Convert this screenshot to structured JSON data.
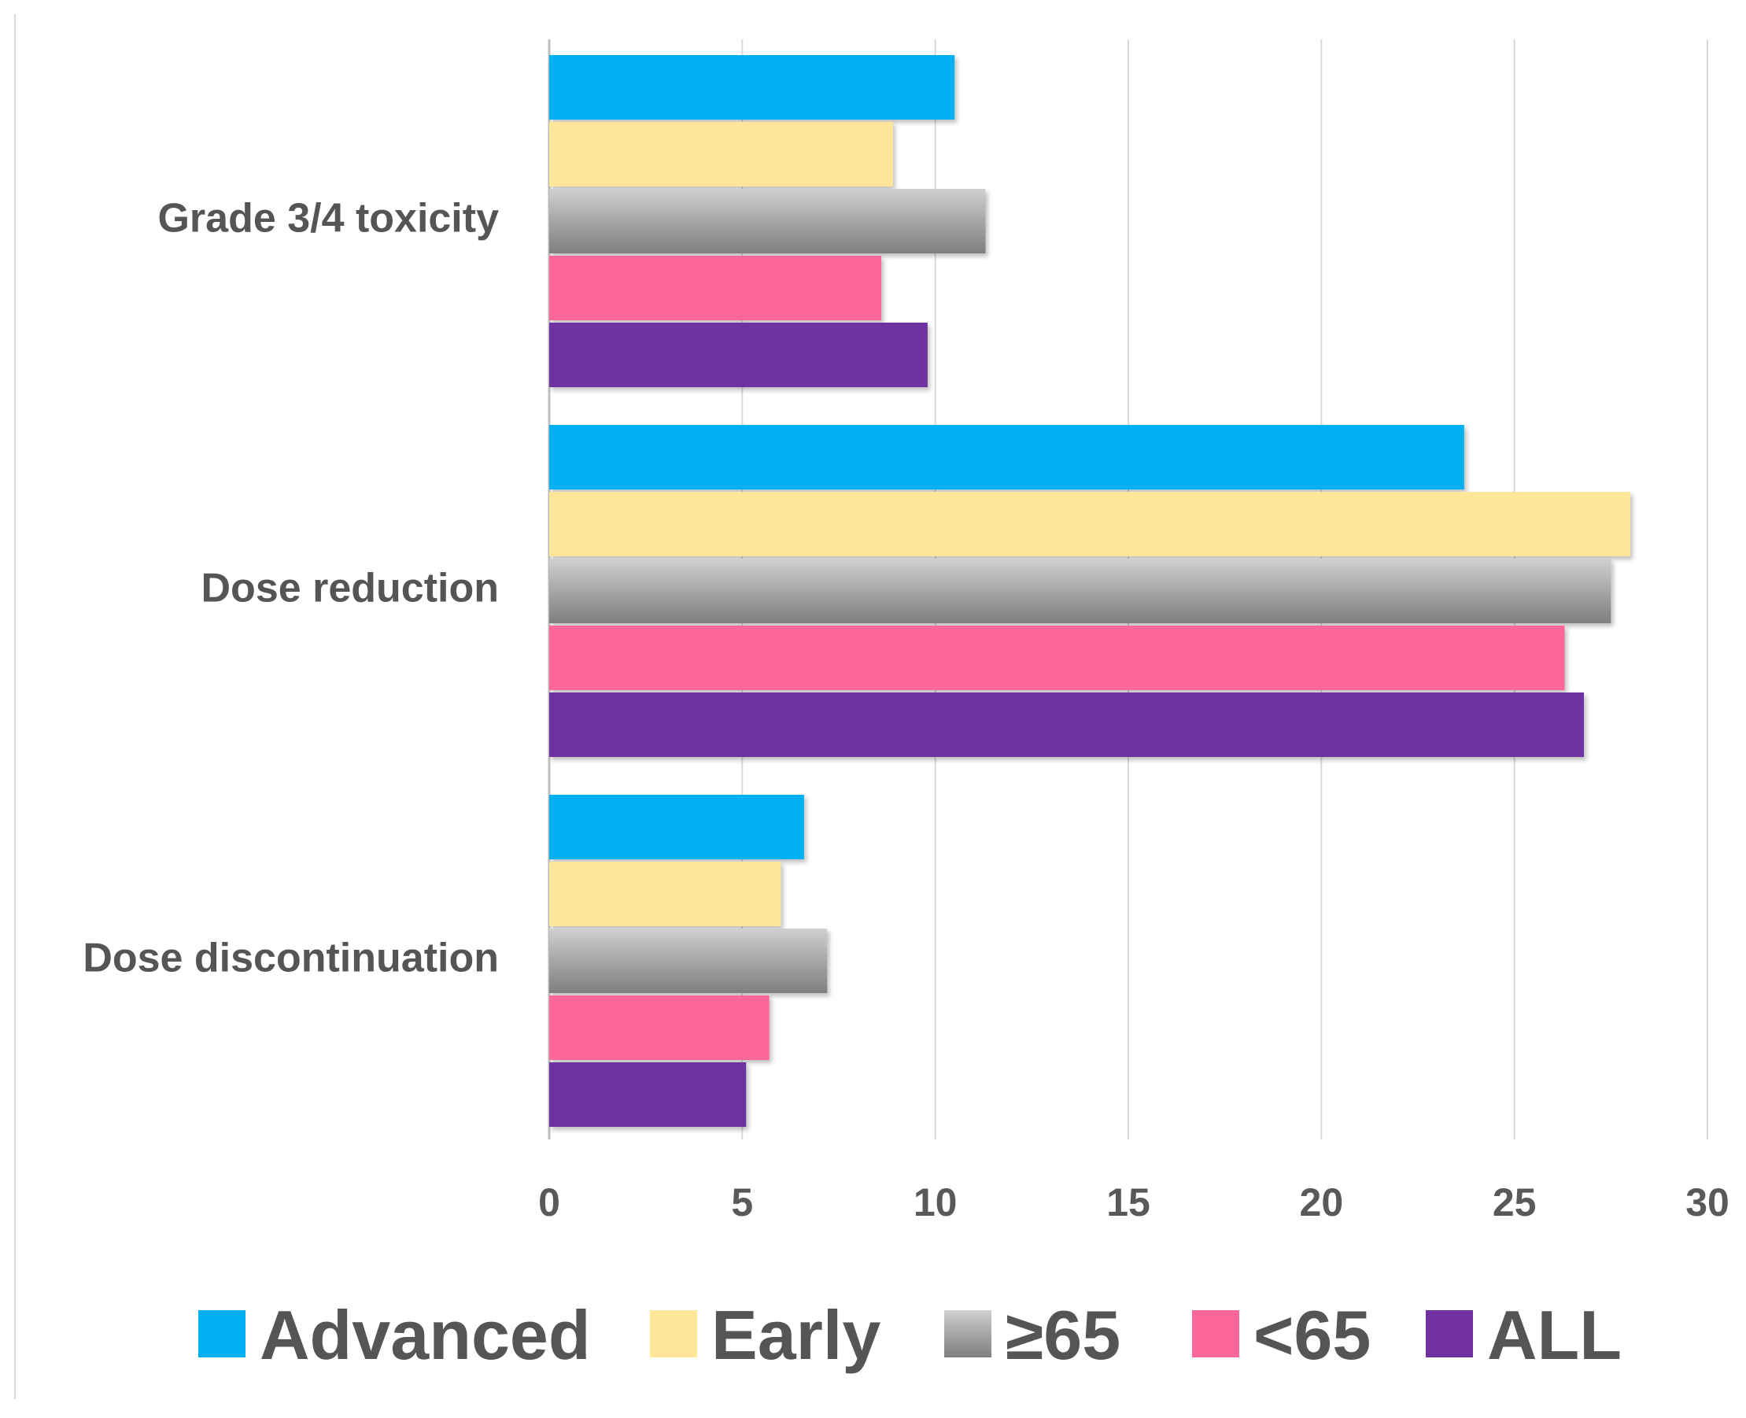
{
  "chart_data": {
    "type": "bar",
    "orientation": "horizontal",
    "categories": [
      "Grade 3/4 toxicity",
      "Dose reduction",
      "Dose discontinuation"
    ],
    "series": [
      {
        "name": "Advanced",
        "color": "#00B0F0",
        "values": [
          10.5,
          23.7,
          6.6
        ]
      },
      {
        "name": "Early",
        "color": "#FFE699",
        "values": [
          8.9,
          28.0,
          6.0
        ]
      },
      {
        "name": "≥65",
        "color": "#A6A6A6",
        "values": [
          11.3,
          27.5,
          7.2
        ]
      },
      {
        "name": "<65",
        "color": "#FF6699",
        "values": [
          8.6,
          26.3,
          5.7
        ]
      },
      {
        "name": "ALL",
        "color": "#7030A0",
        "values": [
          9.8,
          26.8,
          5.1
        ]
      }
    ],
    "xlim": [
      0,
      30
    ],
    "xticks": [
      0,
      5,
      10,
      15,
      20,
      25,
      30
    ],
    "grid": true,
    "legend_position": "bottom",
    "title": "",
    "xlabel": "",
    "ylabel": ""
  }
}
